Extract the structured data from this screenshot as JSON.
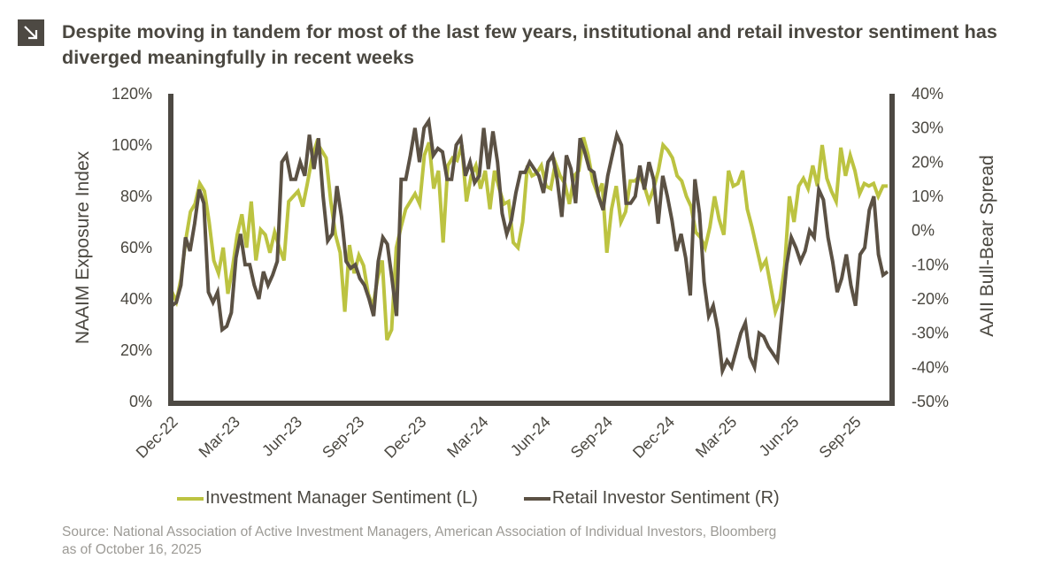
{
  "header": {
    "icon": "arrow-down-right-icon",
    "title": "Despite moving in tandem for most of the last few years, institutional and retail investor sentiment has diverged meaningfully in recent weeks"
  },
  "colors": {
    "investment_manager": "#bcc341",
    "retail_investor": "#5b5144",
    "axis": "#4d4943",
    "text": "#4a4740",
    "source_text": "#9c9a95"
  },
  "legend": {
    "items": [
      {
        "label": "Investment Manager Sentiment (L)"
      },
      {
        "label": "Retail Investor Sentiment (R)"
      }
    ]
  },
  "source": {
    "line1": "Source: National Association of Active Investment Managers, American Association of Individual Investors, Bloomberg",
    "line2": "as of October 16, 2025"
  },
  "chart_data": {
    "type": "line",
    "title": "Despite moving in tandem for most of the last few years, institutional and retail investor sentiment has diverged meaningfully in recent weeks",
    "xlabel": "",
    "ylabel": "NAAIM Exposure Index",
    "y2label": "AAII Bull-Bear Spread",
    "ylim": [
      0,
      120
    ],
    "y2lim": [
      -50,
      40
    ],
    "yticks": [
      "0%",
      "20%",
      "40%",
      "60%",
      "80%",
      "100%",
      "120%"
    ],
    "y2ticks": [
      "-50%",
      "-40%",
      "-30%",
      "-20%",
      "-10%",
      "0%",
      "10%",
      "20%",
      "30%",
      "40%"
    ],
    "xticks": [
      "Dec-22",
      "Mar-23",
      "Jun-23",
      "Sep-23",
      "Dec-23",
      "Mar-24",
      "Jun-24",
      "Sep-24",
      "Dec-24",
      "Mar-25",
      "Jun-25",
      "Sep-25"
    ],
    "x_range_months": [
      0,
      34.5
    ],
    "grid": false,
    "legend_position": "bottom",
    "series": [
      {
        "name": "Investment Manager Sentiment (L)",
        "axis": "left",
        "values": [
          43,
          39,
          48,
          63,
          74,
          77,
          85,
          82,
          70,
          55,
          50,
          60,
          42,
          52,
          65,
          73,
          60,
          78,
          55,
          67,
          65,
          58,
          66,
          60,
          55,
          78,
          80,
          82,
          76,
          85,
          95,
          101,
          98,
          95,
          78,
          65,
          58,
          35,
          61,
          50,
          57,
          53,
          42,
          37,
          48,
          55,
          24,
          28,
          60,
          68,
          75,
          78,
          81,
          77,
          96,
          101,
          83,
          90,
          62,
          92,
          95,
          94,
          100,
          78,
          88,
          92,
          83,
          90,
          75,
          90,
          83,
          77,
          78,
          62,
          60,
          70,
          92,
          88,
          89,
          92,
          84,
          83,
          93,
          88,
          85,
          77,
          88,
          90,
          103,
          96,
          86,
          81,
          85,
          58,
          75,
          84,
          70,
          74,
          86,
          86,
          88,
          84,
          78,
          83,
          90,
          100,
          98,
          95,
          88,
          86,
          80,
          76,
          66,
          64,
          60,
          68,
          80,
          71,
          65,
          90,
          84,
          85,
          90,
          75,
          68,
          60,
          52,
          55,
          45,
          35,
          40,
          53,
          80,
          70,
          84,
          87,
          83,
          92,
          84,
          100,
          87,
          82,
          78,
          99,
          88,
          96,
          90,
          81,
          85,
          84,
          85,
          80,
          84,
          84
        ]
      },
      {
        "name": "Retail Investor Sentiment (R)",
        "axis": "right",
        "values": [
          -22,
          -21,
          -16,
          -2,
          -6,
          2,
          12,
          8,
          -18,
          -21,
          -18,
          -29,
          -28,
          -24,
          -8,
          -1,
          -10,
          -10,
          -16,
          -20,
          -12,
          -16,
          -13,
          -9,
          20,
          22,
          15,
          15,
          20,
          16,
          28,
          18,
          27,
          10,
          -3,
          -1,
          13,
          4,
          -9,
          -11,
          -10,
          -14,
          -16,
          -20,
          -25,
          -9,
          -2,
          -4,
          -14,
          -25,
          15,
          15,
          22,
          30,
          20,
          30,
          32,
          22,
          24,
          23,
          15,
          15,
          25,
          27,
          16,
          20,
          14,
          16,
          30,
          18,
          29,
          20,
          5,
          -1,
          3,
          11,
          17,
          17,
          20,
          18,
          16,
          11,
          20,
          22,
          15,
          4,
          22,
          18,
          8,
          27,
          23,
          18,
          17,
          10,
          6,
          16,
          22,
          28,
          25,
          8,
          8,
          10,
          19,
          12,
          20,
          15,
          2,
          16,
          10,
          3,
          -6,
          -1,
          -8,
          -19,
          15,
          5,
          -15,
          -25,
          -22,
          -29,
          -41,
          -38,
          -40,
          -35,
          -30,
          -27,
          -37,
          -40,
          -30,
          -31,
          -34,
          -36,
          -38,
          -24,
          -10,
          -2,
          -5,
          -9,
          -6,
          0,
          -2,
          12,
          9,
          -2,
          -9,
          -18,
          -14,
          -7,
          -16,
          -22,
          -7,
          -5,
          6,
          10,
          -7,
          -13,
          -12
        ]
      }
    ]
  }
}
